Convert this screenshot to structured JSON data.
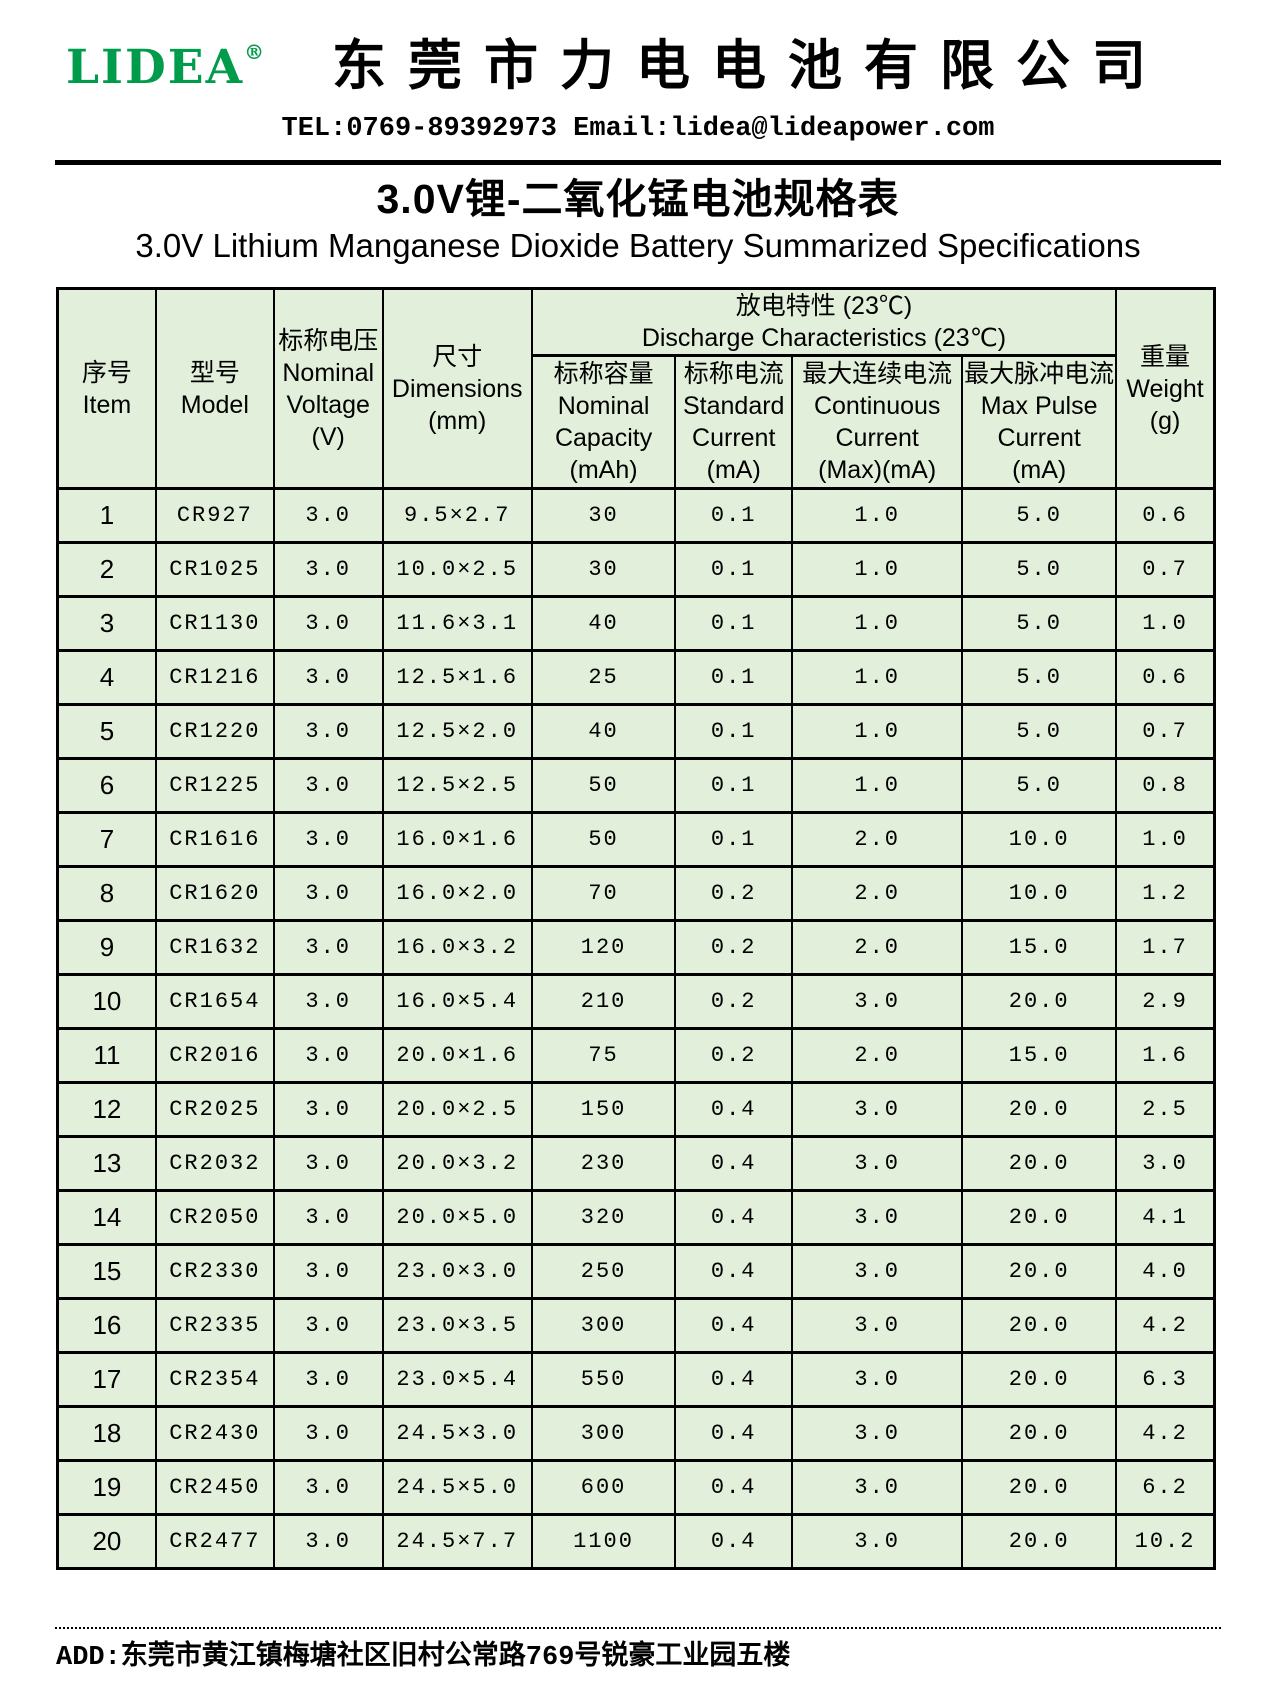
{
  "brand": {
    "logo": "LIDEA",
    "registered_mark": "®",
    "logo_color": "#009b4b",
    "company_cn": "东莞市力电电池有限公司",
    "contact": "TEL:0769-89392973 Email:lidea@lideapower.com"
  },
  "title": {
    "cn": "3.0V锂-二氧化锰电池规格表",
    "en": "3.0V Lithium Manganese Dioxide Battery Summarized Specifications"
  },
  "table": {
    "cell_bg": "#e2efda",
    "border_color": "#000000",
    "headers": {
      "item": {
        "cn": "序号",
        "en": "Item"
      },
      "model": {
        "cn": "型号",
        "en": "Model"
      },
      "voltage": {
        "cn": "标称电压",
        "en1": "Nominal",
        "en2": "Voltage",
        "unit": "(V)"
      },
      "dimensions": {
        "cn": "尺寸",
        "en": "Dimensions",
        "unit": "(mm)"
      },
      "discharge_group": {
        "cn": "放电特性 (23℃)",
        "en": "Discharge Characteristics (23℃)"
      },
      "capacity": {
        "cn": "标称容量",
        "en1": "Nominal",
        "en2": "Capacity",
        "unit": "(mAh)"
      },
      "standard_current": {
        "cn": "标称电流",
        "en1": "Standard",
        "en2": "Current",
        "unit": "(mA)"
      },
      "continuous_current": {
        "cn": "最大连续电流",
        "en1": "Continuous",
        "en2": "Current",
        "unit": "(Max)(mA)"
      },
      "pulse_current": {
        "cn": "最大脉冲电流",
        "en1": "Max Pulse",
        "en2": "Current",
        "unit": "(mA)"
      },
      "weight": {
        "cn": "重量",
        "en": "Weight",
        "unit": "(g)"
      }
    },
    "column_order": [
      "item",
      "model",
      "voltage",
      "dimensions",
      "capacity",
      "standard_current",
      "continuous_current",
      "pulse_current",
      "weight"
    ],
    "rows": [
      {
        "item": "1",
        "model": "CR927",
        "voltage": "3.0",
        "dimensions": "9.5×2.7",
        "capacity": "30",
        "standard_current": "0.1",
        "continuous_current": "1.0",
        "pulse_current": "5.0",
        "weight": "0.6"
      },
      {
        "item": "2",
        "model": "CR1025",
        "voltage": "3.0",
        "dimensions": "10.0×2.5",
        "capacity": "30",
        "standard_current": "0.1",
        "continuous_current": "1.0",
        "pulse_current": "5.0",
        "weight": "0.7"
      },
      {
        "item": "3",
        "model": "CR1130",
        "voltage": "3.0",
        "dimensions": "11.6×3.1",
        "capacity": "40",
        "standard_current": "0.1",
        "continuous_current": "1.0",
        "pulse_current": "5.0",
        "weight": "1.0"
      },
      {
        "item": "4",
        "model": "CR1216",
        "voltage": "3.0",
        "dimensions": "12.5×1.6",
        "capacity": "25",
        "standard_current": "0.1",
        "continuous_current": "1.0",
        "pulse_current": "5.0",
        "weight": "0.6"
      },
      {
        "item": "5",
        "model": "CR1220",
        "voltage": "3.0",
        "dimensions": "12.5×2.0",
        "capacity": "40",
        "standard_current": "0.1",
        "continuous_current": "1.0",
        "pulse_current": "5.0",
        "weight": "0.7"
      },
      {
        "item": "6",
        "model": "CR1225",
        "voltage": "3.0",
        "dimensions": "12.5×2.5",
        "capacity": "50",
        "standard_current": "0.1",
        "continuous_current": "1.0",
        "pulse_current": "5.0",
        "weight": "0.8"
      },
      {
        "item": "7",
        "model": "CR1616",
        "voltage": "3.0",
        "dimensions": "16.0×1.6",
        "capacity": "50",
        "standard_current": "0.1",
        "continuous_current": "2.0",
        "pulse_current": "10.0",
        "weight": "1.0"
      },
      {
        "item": "8",
        "model": "CR1620",
        "voltage": "3.0",
        "dimensions": "16.0×2.0",
        "capacity": "70",
        "standard_current": "0.2",
        "continuous_current": "2.0",
        "pulse_current": "10.0",
        "weight": "1.2"
      },
      {
        "item": "9",
        "model": "CR1632",
        "voltage": "3.0",
        "dimensions": "16.0×3.2",
        "capacity": "120",
        "standard_current": "0.2",
        "continuous_current": "2.0",
        "pulse_current": "15.0",
        "weight": "1.7"
      },
      {
        "item": "10",
        "model": "CR1654",
        "voltage": "3.0",
        "dimensions": "16.0×5.4",
        "capacity": "210",
        "standard_current": "0.2",
        "continuous_current": "3.0",
        "pulse_current": "20.0",
        "weight": "2.9"
      },
      {
        "item": "11",
        "model": "CR2016",
        "voltage": "3.0",
        "dimensions": "20.0×1.6",
        "capacity": "75",
        "standard_current": "0.2",
        "continuous_current": "2.0",
        "pulse_current": "15.0",
        "weight": "1.6"
      },
      {
        "item": "12",
        "model": "CR2025",
        "voltage": "3.0",
        "dimensions": "20.0×2.5",
        "capacity": "150",
        "standard_current": "0.4",
        "continuous_current": "3.0",
        "pulse_current": "20.0",
        "weight": "2.5"
      },
      {
        "item": "13",
        "model": "CR2032",
        "voltage": "3.0",
        "dimensions": "20.0×3.2",
        "capacity": "230",
        "standard_current": "0.4",
        "continuous_current": "3.0",
        "pulse_current": "20.0",
        "weight": "3.0"
      },
      {
        "item": "14",
        "model": "CR2050",
        "voltage": "3.0",
        "dimensions": "20.0×5.0",
        "capacity": "320",
        "standard_current": "0.4",
        "continuous_current": "3.0",
        "pulse_current": "20.0",
        "weight": "4.1"
      },
      {
        "item": "15",
        "model": "CR2330",
        "voltage": "3.0",
        "dimensions": "23.0×3.0",
        "capacity": "250",
        "standard_current": "0.4",
        "continuous_current": "3.0",
        "pulse_current": "20.0",
        "weight": "4.0"
      },
      {
        "item": "16",
        "model": "CR2335",
        "voltage": "3.0",
        "dimensions": "23.0×3.5",
        "capacity": "300",
        "standard_current": "0.4",
        "continuous_current": "3.0",
        "pulse_current": "20.0",
        "weight": "4.2"
      },
      {
        "item": "17",
        "model": "CR2354",
        "voltage": "3.0",
        "dimensions": "23.0×5.4",
        "capacity": "550",
        "standard_current": "0.4",
        "continuous_current": "3.0",
        "pulse_current": "20.0",
        "weight": "6.3"
      },
      {
        "item": "18",
        "model": "CR2430",
        "voltage": "3.0",
        "dimensions": "24.5×3.0",
        "capacity": "300",
        "standard_current": "0.4",
        "continuous_current": "3.0",
        "pulse_current": "20.0",
        "weight": "4.2"
      },
      {
        "item": "19",
        "model": "CR2450",
        "voltage": "3.0",
        "dimensions": "24.5×5.0",
        "capacity": "600",
        "standard_current": "0.4",
        "continuous_current": "3.0",
        "pulse_current": "20.0",
        "weight": "6.2"
      },
      {
        "item": "20",
        "model": "CR2477",
        "voltage": "3.0",
        "dimensions": "24.5×7.7",
        "capacity": "1100",
        "standard_current": "0.4",
        "continuous_current": "3.0",
        "pulse_current": "20.0",
        "weight": "10.2"
      }
    ]
  },
  "footer": {
    "address": "ADD:东莞市黄江镇梅塘社区旧村公常路769号锐豪工业园五楼"
  }
}
